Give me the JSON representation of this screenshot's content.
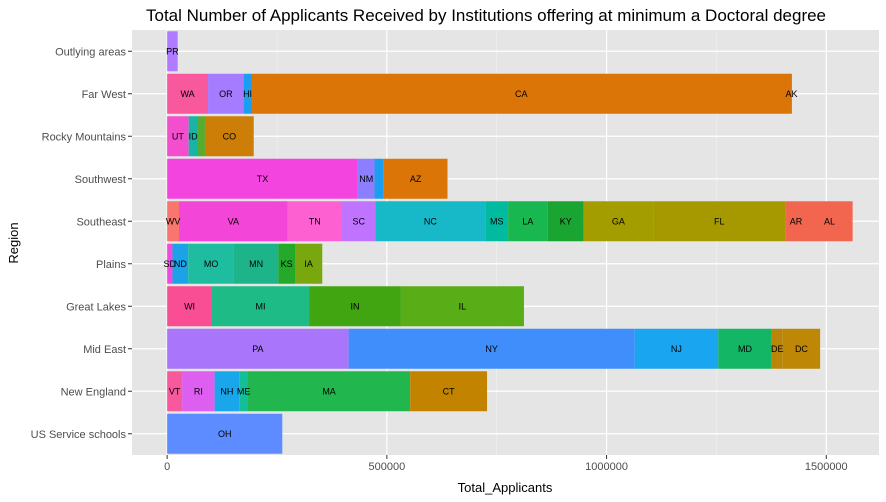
{
  "chart_data": {
    "type": "bar",
    "orientation": "horizontal",
    "stacked": true,
    "title": "Total Number of Applicants Received by Institutions offering at minimum a Doctoral degree",
    "xlabel": "Total_Applicants",
    "ylabel": "Region",
    "xlim": [
      -80000,
      1620000
    ],
    "xticks": [
      0,
      500000,
      1000000,
      1500000
    ],
    "xtick_labels": [
      "0",
      "500000",
      "1000000",
      "1500000"
    ],
    "grid": true,
    "legend": "none",
    "categories": [
      "Outlying areas",
      "Far West",
      "Rocky Mountains",
      "Southwest",
      "Southeast",
      "Plains",
      "Great Lakes",
      "Mid East",
      "New England",
      "US Service schools"
    ],
    "bars": [
      {
        "region": "Outlying areas",
        "segments": [
          {
            "label": "PR",
            "value": 24000,
            "color": "#b07cff"
          }
        ]
      },
      {
        "region": "Far West",
        "segments": [
          {
            "label": "WA",
            "value": 93000,
            "color": "#f8589c"
          },
          {
            "label": "OR",
            "value": 81000,
            "color": "#a57cff"
          },
          {
            "label": "HI",
            "value": 18000,
            "color": "#1c9ef0"
          },
          {
            "label": "CA",
            "value": 1228000,
            "color": "#dc7508"
          },
          {
            "label": "AK",
            "value": 2000,
            "color": "#e46a2c"
          }
        ]
      },
      {
        "region": "Rocky Mountains",
        "segments": [
          {
            "label": "UT",
            "value": 49000,
            "color": "#f24ecd"
          },
          {
            "label": "ID",
            "value": 20000,
            "color": "#19b4a6"
          },
          {
            "label": "",
            "value": 17000,
            "color": "#56ac2c"
          },
          {
            "label": "CO",
            "value": 111000,
            "color": "#cc7e07"
          }
        ]
      },
      {
        "region": "Southwest",
        "segments": [
          {
            "label": "TX",
            "value": 434000,
            "color": "#f444e0"
          },
          {
            "label": "NM",
            "value": 38000,
            "color": "#8c7eff"
          },
          {
            "label": "",
            "value": 21000,
            "color": "#1c9ef0"
          },
          {
            "label": "AZ",
            "value": 145000,
            "color": "#dc7508"
          }
        ]
      },
      {
        "region": "Southeast",
        "segments": [
          {
            "label": "WV",
            "value": 27000,
            "color": "#f8766d"
          },
          {
            "label": "VA",
            "value": 247000,
            "color": "#f345d8"
          },
          {
            "label": "TN",
            "value": 124000,
            "color": "#fd61d1"
          },
          {
            "label": "SC",
            "value": 76000,
            "color": "#bf73ff"
          },
          {
            "label": "NC",
            "value": 250000,
            "color": "#17b8c8"
          },
          {
            "label": "MS",
            "value": 52000,
            "color": "#00bb9f"
          },
          {
            "label": "LA",
            "value": 90000,
            "color": "#19b74f"
          },
          {
            "label": "KY",
            "value": 82000,
            "color": "#1aa431"
          },
          {
            "label": "GA",
            "value": 158000,
            "color": "#a39d00"
          },
          {
            "label": "FL",
            "value": 301000,
            "color": "#a69900"
          },
          {
            "label": "AR",
            "value": 48000,
            "color": "#f26650"
          },
          {
            "label": "AL",
            "value": 105000,
            "color": "#f26650"
          }
        ]
      },
      {
        "region": "Plains",
        "segments": [
          {
            "label": "SD",
            "value": 12000,
            "color": "#f347e1"
          },
          {
            "label": "ND",
            "value": 36000,
            "color": "#1ca2e6"
          },
          {
            "label": "MO",
            "value": 104000,
            "color": "#1ebd9f"
          },
          {
            "label": "MN",
            "value": 101000,
            "color": "#1eb48a"
          },
          {
            "label": "KS",
            "value": 38000,
            "color": "#25a92a"
          },
          {
            "label": "IA",
            "value": 62000,
            "color": "#79a70e"
          }
        ]
      },
      {
        "region": "Great Lakes",
        "segments": [
          {
            "label": "WI",
            "value": 102000,
            "color": "#f94e94"
          },
          {
            "label": "MI",
            "value": 221000,
            "color": "#1fbb87"
          },
          {
            "label": "IN",
            "value": 209000,
            "color": "#41a512"
          },
          {
            "label": "IL",
            "value": 280000,
            "color": "#59ad16"
          }
        ]
      },
      {
        "region": "Mid East",
        "segments": [
          {
            "label": "PA",
            "value": 413000,
            "color": "#a875fb"
          },
          {
            "label": "NY",
            "value": 651000,
            "color": "#3f8efc"
          },
          {
            "label": "NJ",
            "value": 190000,
            "color": "#1aa5f0"
          },
          {
            "label": "MD",
            "value": 122000,
            "color": "#13b665"
          },
          {
            "label": "DE",
            "value": 25000,
            "color": "#b98608"
          },
          {
            "label": "DC",
            "value": 85000,
            "color": "#be8706"
          }
        ]
      },
      {
        "region": "New England",
        "segments": [
          {
            "label": "VT",
            "value": 34000,
            "color": "#f8589c"
          },
          {
            "label": "RI",
            "value": 74000,
            "color": "#dd5ff0"
          },
          {
            "label": "NH",
            "value": 56000,
            "color": "#1aa6ea"
          },
          {
            "label": "ME",
            "value": 20000,
            "color": "#16bd9b"
          },
          {
            "label": "MA",
            "value": 369000,
            "color": "#21b74e"
          },
          {
            "label": "CT",
            "value": 175000,
            "color": "#c18300"
          }
        ]
      },
      {
        "region": "US Service schools",
        "segments": [
          {
            "label": "OH",
            "value": 262000,
            "color": "#5c8cff"
          }
        ]
      }
    ]
  },
  "colors": {
    "panel_background": "#e5e5e5",
    "grid_major": "#ffffff",
    "grid_minor": "#f0f0f0",
    "tick_text": "#4d4d4d"
  }
}
